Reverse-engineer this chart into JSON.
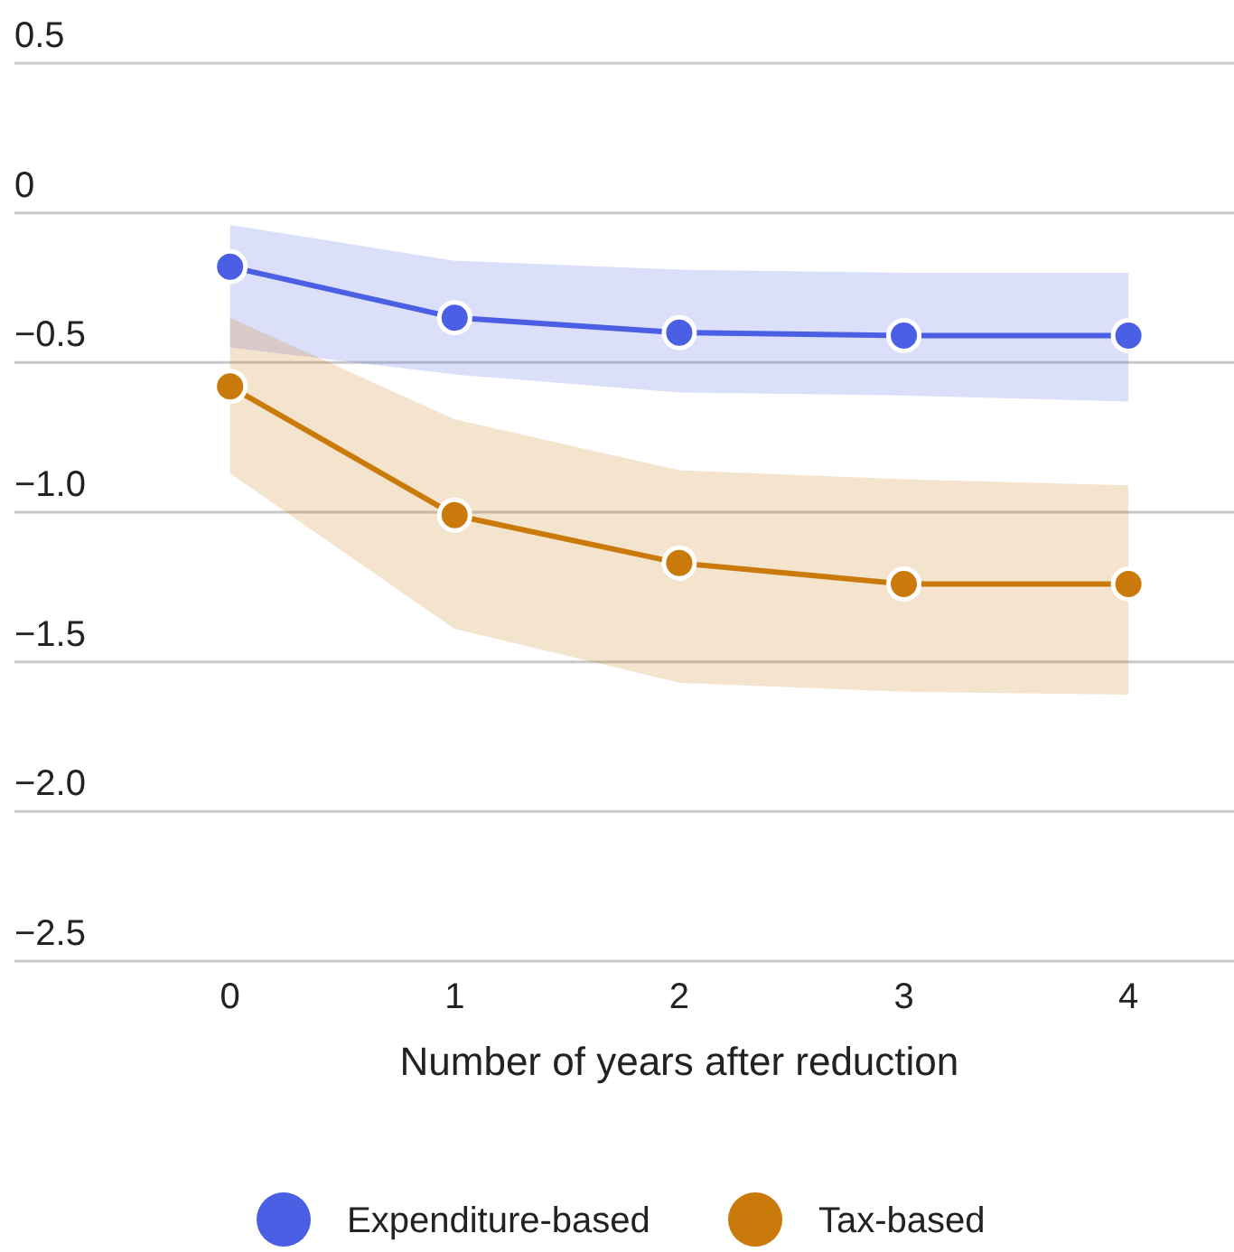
{
  "chart_data": {
    "type": "line",
    "xlabel": "Number of years after reduction",
    "x": [
      0,
      1,
      2,
      3,
      4
    ],
    "series": [
      {
        "name": "Expenditure-based",
        "color": "#4a5fe3",
        "values": [
          -0.18,
          -0.35,
          -0.4,
          -0.41,
          -0.41
        ],
        "lower": [
          -0.45,
          -0.54,
          -0.6,
          -0.61,
          -0.63
        ],
        "upper": [
          -0.04,
          -0.16,
          -0.19,
          -0.2,
          -0.2
        ]
      },
      {
        "name": "Tax-based",
        "color": "#c97a0a",
        "values": [
          -0.58,
          -1.01,
          -1.17,
          -1.24,
          -1.24
        ],
        "lower": [
          -0.87,
          -1.39,
          -1.57,
          -1.6,
          -1.61
        ],
        "upper": [
          -0.35,
          -0.69,
          -0.86,
          -0.89,
          -0.91
        ]
      }
    ],
    "xlim": [
      -0.96,
      4.47
    ],
    "xticks": [
      0,
      1,
      2,
      3,
      4
    ],
    "ylim": [
      -2.5,
      0.5
    ],
    "yticks": [
      0.5,
      0,
      {
        "value": -0.5,
        "label": "−0.5"
      },
      {
        "value": -1,
        "label": "−1.0"
      },
      {
        "value": -1.5,
        "label": "−1.5"
      },
      {
        "value": -2,
        "label": "−2.0"
      },
      {
        "value": -2.5,
        "label": "−2.5"
      }
    ],
    "grid": "y",
    "legend": "bottom",
    "marker": "circle",
    "line_style": "solid"
  }
}
